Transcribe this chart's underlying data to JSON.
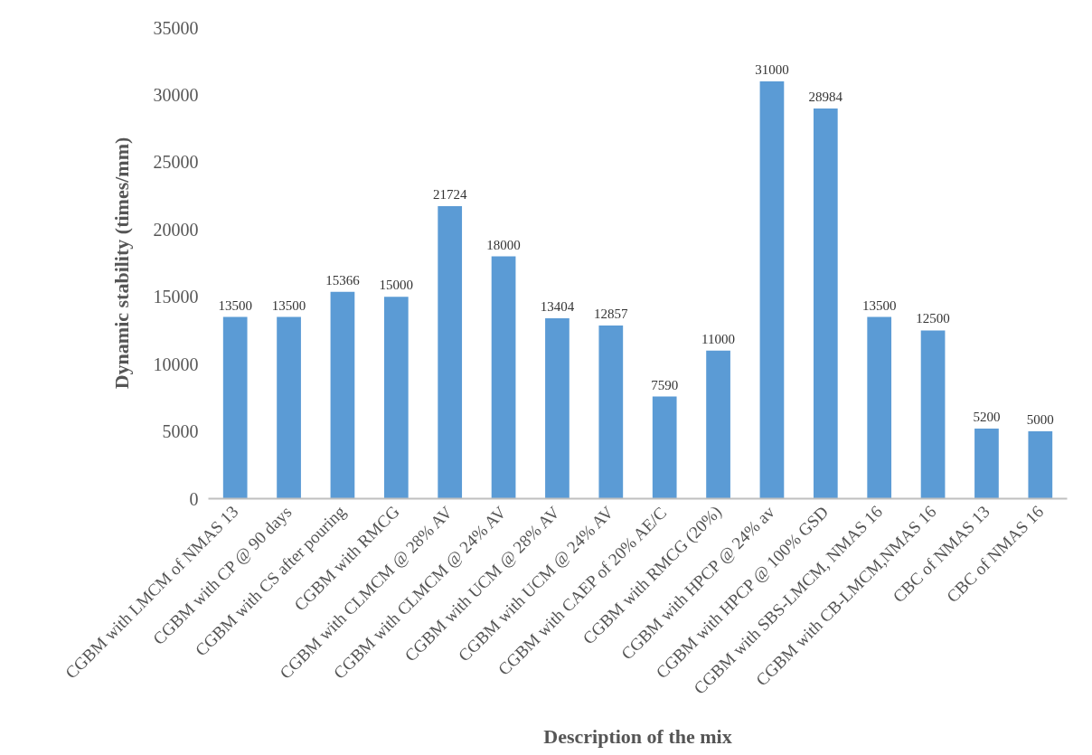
{
  "chart_data": {
    "type": "bar",
    "xlabel": "Description of the mix",
    "ylabel": "Dynamic stability (times/mm)",
    "categories": [
      "CGBM with LMCM of NMAS 13",
      "CGBM with CP @ 90 days",
      "CGBM with CS after pouring",
      "CGBM with RMCG",
      "CGBM with CLMCM @ 28% AV",
      "CGBM with CLMCM @ 24% AV",
      "CGBM with UCM @ 28% AV",
      "CGBM with UCM @ 24% AV",
      "CGBM with CAEP of 20% AE/C",
      "CGBM with RMCG (20%)",
      "CGBM with HPCP @ 24% av",
      "CGBM with HPCP @ 100% GSD",
      "CGBM with SBS-LMCM, NMAS 16",
      "CGBM with CB-LMCM,NMAS 16",
      "CBC of NMAS 13",
      "CBC of NMAS 16"
    ],
    "values": [
      13500,
      13500,
      15366,
      15000,
      21724,
      18000,
      13404,
      12857,
      7590,
      11000,
      31000,
      28984,
      13500,
      12500,
      5200,
      5000
    ],
    "color": "#5b9bd5",
    "ylim": [
      0,
      35000
    ],
    "yticks": [
      0,
      5000,
      10000,
      15000,
      20000,
      25000,
      30000,
      35000
    ],
    "grid": false,
    "data_labels": true
  }
}
